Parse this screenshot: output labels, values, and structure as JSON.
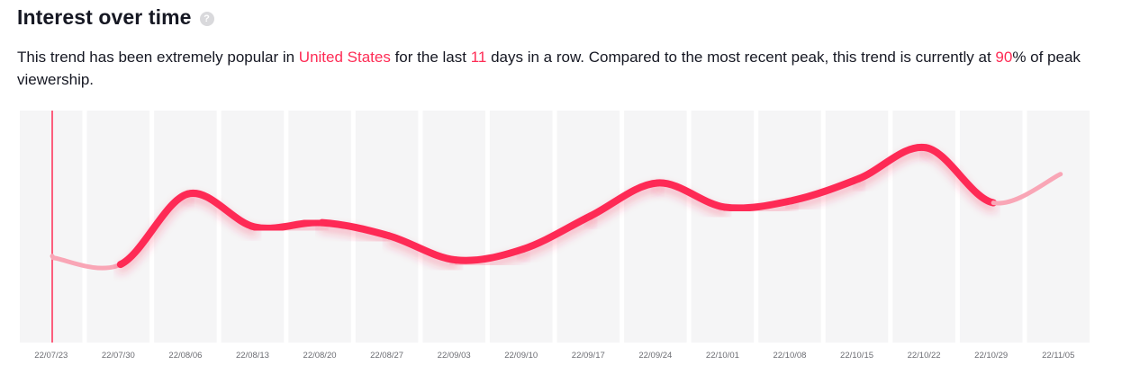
{
  "header": {
    "title": "Interest over time"
  },
  "description": {
    "part1": "This trend has been extremely popular in ",
    "country": "United States",
    "part2": " for the last ",
    "days": "11",
    "part3": " days in a row. Compared to the most recent peak, this trend is currently at ",
    "percent": "90",
    "part4": "% of peak viewership."
  },
  "colors": {
    "accent": "#fe2c55",
    "faded": "#f9a6b6",
    "band": "#f5f5f6"
  },
  "chart_data": {
    "type": "line",
    "title": "",
    "xlabel": "",
    "ylabel": "",
    "ylim": [
      0,
      100
    ],
    "grid": false,
    "categories": [
      "22/07/23",
      "22/07/30",
      "22/08/06",
      "22/08/13",
      "22/08/20",
      "22/08/27",
      "22/09/03",
      "22/09/10",
      "22/09/17",
      "22/09/24",
      "22/10/01",
      "22/10/08",
      "22/10/15",
      "22/10/22",
      "22/10/29",
      "22/11/05"
    ],
    "series": [
      {
        "values": [
          36,
          33,
          65,
          50,
          52,
          46,
          35,
          40,
          55,
          70,
          59,
          62,
          72,
          86,
          61,
          74
        ],
        "faded_points": [
          0,
          1,
          14,
          15
        ]
      }
    ]
  }
}
